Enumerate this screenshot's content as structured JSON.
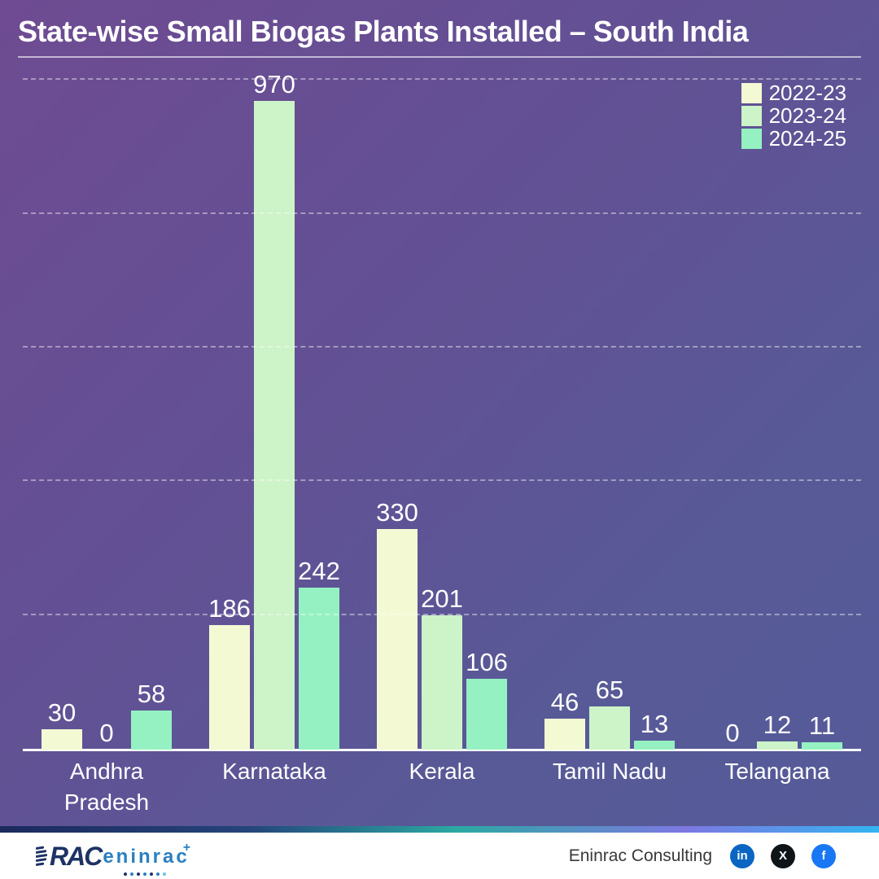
{
  "header": {
    "title": "State-wise Small Biogas Plants Installed – South India"
  },
  "chart_data": {
    "type": "bar",
    "title": "State-wise Small Biogas Plants Installed – South India",
    "categories": [
      "Andhra Pradesh",
      "Karnataka",
      "Kerala",
      "Tamil Nadu",
      "Telangana"
    ],
    "series": [
      {
        "name": "2022-23",
        "color": "#f3f9d3",
        "values": [
          30,
          186,
          330,
          46,
          0
        ]
      },
      {
        "name": "2023-24",
        "color": "#cdf3c8",
        "values": [
          0,
          970,
          201,
          65,
          12
        ]
      },
      {
        "name": "2024-25",
        "color": "#95f1c1",
        "values": [
          58,
          242,
          106,
          13,
          11
        ]
      }
    ],
    "xlabel": "",
    "ylabel": "",
    "ylim": [
      0,
      1010
    ],
    "gridlines": [
      200,
      400,
      600,
      800,
      1000
    ],
    "grid": "horizontal-dashed",
    "legend_position": "top-right",
    "value_labels": true
  },
  "footer": {
    "logo": {
      "rac": "RAC",
      "eninrac": "eninrac",
      "plus": "+"
    },
    "company": "Eninrac Consulting",
    "social": [
      {
        "name": "linkedin",
        "glyph": "in",
        "color": "#0a66c2"
      },
      {
        "name": "x",
        "glyph": "X",
        "color": "#0f1419"
      },
      {
        "name": "facebook",
        "glyph": "f",
        "color": "#1877f2"
      }
    ]
  },
  "style": {
    "background_top_left": "#6e4b92",
    "background_bottom_right": "#555b98",
    "axis_color": "#ffffff",
    "gridline_color": "rgba(255,255,255,0.42)",
    "label_color": "#ffffff"
  }
}
